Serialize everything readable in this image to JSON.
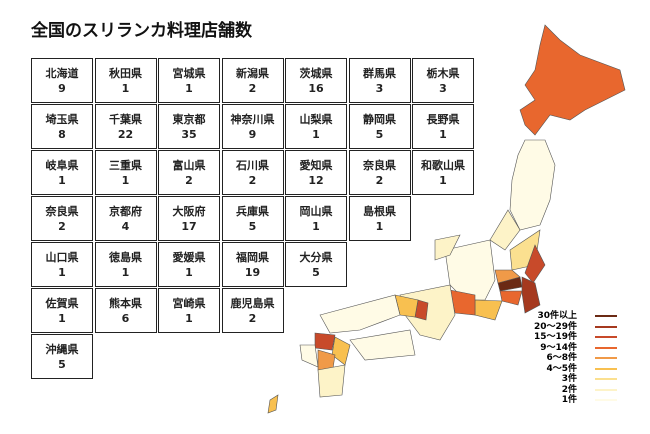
{
  "title": "全国のスリランカ料理店舗数",
  "prefectures": [
    {
      "name": "北海道",
      "count": "9"
    },
    {
      "name": "秋田県",
      "count": "1"
    },
    {
      "name": "宮城県",
      "count": "1"
    },
    {
      "name": "新潟県",
      "count": "2"
    },
    {
      "name": "茨城県",
      "count": "16"
    },
    {
      "name": "群馬県",
      "count": "3"
    },
    {
      "name": "栃木県",
      "count": "3"
    },
    {
      "name": "埼玉県",
      "count": "8"
    },
    {
      "name": "千葉県",
      "count": "22"
    },
    {
      "name": "東京都",
      "count": "35"
    },
    {
      "name": "神奈川県",
      "count": "9"
    },
    {
      "name": "山梨県",
      "count": "1"
    },
    {
      "name": "静岡県",
      "count": "5"
    },
    {
      "name": "長野県",
      "count": "1"
    },
    {
      "name": "岐阜県",
      "count": "1"
    },
    {
      "name": "三重県",
      "count": "1"
    },
    {
      "name": "富山県",
      "count": "2"
    },
    {
      "name": "石川県",
      "count": "2"
    },
    {
      "name": "愛知県",
      "count": "12"
    },
    {
      "name": "奈良県",
      "count": "2"
    },
    {
      "name": "和歌山県",
      "count": "1"
    },
    {
      "name": "奈良県",
      "count": "2"
    },
    {
      "name": "京都府",
      "count": "4"
    },
    {
      "name": "大阪府",
      "count": "17"
    },
    {
      "name": "兵庫県",
      "count": "5"
    },
    {
      "name": "岡山県",
      "count": "1"
    },
    {
      "name": "島根県",
      "count": "1"
    },
    {
      "name": "山口県",
      "count": "1"
    },
    {
      "name": "徳島県",
      "count": "1"
    },
    {
      "name": "愛媛県",
      "count": "1"
    },
    {
      "name": "福岡県",
      "count": "19"
    },
    {
      "name": "大分県",
      "count": "5"
    },
    {
      "name": "佐賀県",
      "count": "1"
    },
    {
      "name": "熊本県",
      "count": "6"
    },
    {
      "name": "宮崎県",
      "count": "1"
    },
    {
      "name": "鹿児島県",
      "count": "2"
    },
    {
      "name": "沖縄県",
      "count": "5"
    }
  ],
  "legend": [
    {
      "label": "30件以上",
      "color": "#6b2a14"
    },
    {
      "label": "20～29件",
      "color": "#a5391f"
    },
    {
      "label": "15～19件",
      "color": "#c84a2a"
    },
    {
      "label": "9～14件",
      "color": "#e8672e"
    },
    {
      "label": "6～8件",
      "color": "#f09a48"
    },
    {
      "label": "4～5件",
      "color": "#f8c050"
    },
    {
      "label": "3件",
      "color": "#fbe090"
    },
    {
      "label": "2件",
      "color": "#fdf3c8"
    },
    {
      "label": "1件",
      "color": "#fffbe6"
    }
  ]
}
